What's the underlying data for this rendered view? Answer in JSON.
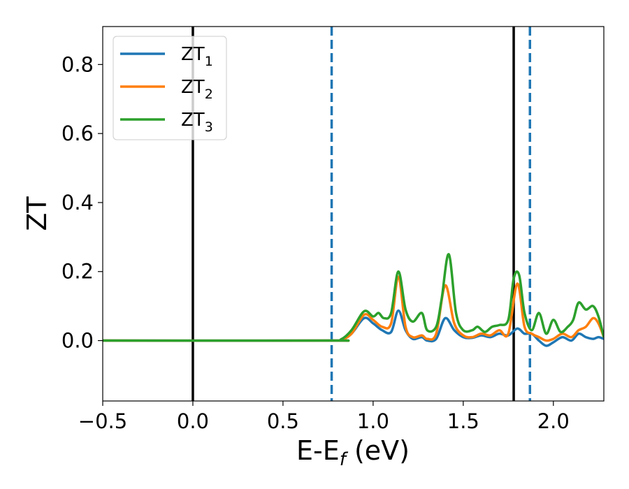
{
  "chart_data": {
    "type": "line",
    "title": "",
    "xlabel": "E-E",
    "xlabel_sub": "f",
    "xlabel_unit": " (eV)",
    "ylabel": "ZT",
    "xlim": [
      -0.5,
      2.28
    ],
    "ylim": [
      -0.175,
      0.91
    ],
    "xticks": [
      -0.5,
      0.0,
      0.5,
      1.0,
      1.5,
      2.0
    ],
    "xtick_labels": [
      "−0.5",
      "0.0",
      "0.5",
      "1.0",
      "1.5",
      "2.0"
    ],
    "yticks": [
      0.0,
      0.2,
      0.4,
      0.6,
      0.8
    ],
    "ytick_labels": [
      "0.0",
      "0.2",
      "0.4",
      "0.6",
      "0.8"
    ],
    "grid": false,
    "legend_position": "upper-left",
    "vlines": [
      {
        "x": 0.0,
        "style": "solid",
        "color": "#000000"
      },
      {
        "x": 0.77,
        "style": "dashed",
        "color": "#1f77b4"
      },
      {
        "x": 1.78,
        "style": "solid",
        "color": "#000000"
      },
      {
        "x": 1.87,
        "style": "dashed",
        "color": "#1f77b4"
      }
    ],
    "series": [
      {
        "name": "ZT",
        "name_sub": "1",
        "color": "#1f77b4",
        "x": [
          -0.5,
          0.75,
          0.82,
          0.88,
          0.95,
          1.0,
          1.05,
          1.1,
          1.14,
          1.18,
          1.22,
          1.27,
          1.3,
          1.35,
          1.4,
          1.45,
          1.5,
          1.55,
          1.6,
          1.65,
          1.7,
          1.75,
          1.8,
          1.84,
          1.88,
          1.92,
          1.96,
          2.0,
          2.05,
          2.1,
          2.14,
          2.18,
          2.22,
          2.25,
          2.28
        ],
        "y": [
          0.0,
          0.0,
          0.002,
          0.02,
          0.065,
          0.05,
          0.03,
          0.025,
          0.087,
          0.03,
          0.005,
          0.01,
          0.0,
          0.005,
          0.065,
          0.03,
          0.01,
          0.008,
          0.015,
          0.01,
          0.02,
          0.015,
          0.035,
          0.02,
          0.02,
          0.0,
          -0.015,
          -0.005,
          0.01,
          0.0,
          0.02,
          0.01,
          0.005,
          0.01,
          0.005
        ]
      },
      {
        "name": "ZT",
        "name_sub": "2",
        "color": "#ff7f0e",
        "x": [
          -0.5,
          0.75,
          0.82,
          0.88,
          0.95,
          1.0,
          1.05,
          1.1,
          1.14,
          1.18,
          1.22,
          1.27,
          1.3,
          1.35,
          1.4,
          1.45,
          1.5,
          1.55,
          1.6,
          1.65,
          1.7,
          1.75,
          1.8,
          1.84,
          1.88,
          1.92,
          1.96,
          2.0,
          2.05,
          2.1,
          2.14,
          2.18,
          2.22,
          2.25,
          2.28
        ],
        "y": [
          0.0,
          0.0,
          0.002,
          0.02,
          0.075,
          0.06,
          0.04,
          0.05,
          0.185,
          0.04,
          0.01,
          0.015,
          0.005,
          0.02,
          0.16,
          0.05,
          0.015,
          0.01,
          0.02,
          0.015,
          0.03,
          0.02,
          0.165,
          0.04,
          0.02,
          0.01,
          0.0,
          0.005,
          0.02,
          0.01,
          0.03,
          0.04,
          0.065,
          0.05,
          0.01
        ]
      },
      {
        "name": "ZT",
        "name_sub": "3",
        "color": "#2ca02c",
        "x": [
          -0.5,
          0.75,
          0.82,
          0.88,
          0.95,
          1.0,
          1.03,
          1.06,
          1.1,
          1.14,
          1.18,
          1.22,
          1.27,
          1.3,
          1.35,
          1.38,
          1.42,
          1.46,
          1.5,
          1.55,
          1.58,
          1.62,
          1.66,
          1.7,
          1.75,
          1.78,
          1.81,
          1.84,
          1.88,
          1.92,
          1.96,
          2.0,
          2.04,
          2.08,
          2.11,
          2.14,
          2.18,
          2.22,
          2.25,
          2.28
        ],
        "y": [
          0.0,
          0.0,
          0.003,
          0.03,
          0.085,
          0.07,
          0.08,
          0.065,
          0.08,
          0.2,
          0.09,
          0.055,
          0.08,
          0.03,
          0.04,
          0.12,
          0.25,
          0.08,
          0.03,
          0.03,
          0.04,
          0.025,
          0.04,
          0.045,
          0.06,
          0.18,
          0.19,
          0.08,
          0.03,
          0.08,
          0.02,
          0.06,
          0.025,
          0.04,
          0.06,
          0.11,
          0.09,
          0.1,
          0.07,
          0.01
        ]
      }
    ]
  }
}
